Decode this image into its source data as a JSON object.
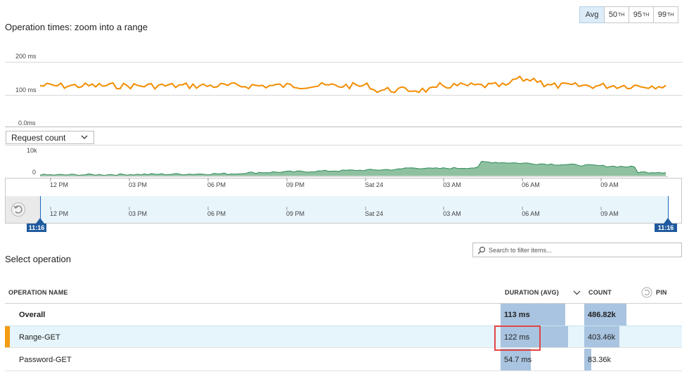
{
  "percentiles": [
    {
      "label": "Avg",
      "sup": "",
      "active": true
    },
    {
      "label": "50",
      "sup": "TH",
      "active": false
    },
    {
      "label": "95",
      "sup": "TH",
      "active": false
    },
    {
      "label": "99",
      "sup": "TH",
      "active": false
    }
  ],
  "chart_title": "Operation times: zoom into a range",
  "duration_chart": {
    "y_labels": [
      "200 ms",
      "100 ms",
      "0.0ms"
    ],
    "series_color": "#f28c00"
  },
  "metric_dropdown": {
    "label": "Request count"
  },
  "count_chart": {
    "y_labels": [
      "10k",
      "0"
    ],
    "fill_color": "#8fc1a1",
    "stroke_color": "#2e8b57"
  },
  "time_ticks": [
    "12 PM",
    "03 PM",
    "06 PM",
    "09 PM",
    "Sat 24",
    "03 AM",
    "06 AM",
    "09 AM"
  ],
  "range": {
    "start_label": "11:16",
    "end_label": "11:16"
  },
  "search": {
    "placeholder": "Search to filter items..."
  },
  "select_title": "Select operation",
  "table": {
    "headers": {
      "name": "OPERATION NAME",
      "duration": "DURATION (AVG)",
      "count": "COUNT",
      "pin": "PIN"
    },
    "rows": [
      {
        "name": "Overall",
        "duration": "113 ms",
        "count": "486.82k",
        "dur_frac": 0.96,
        "cnt_frac": 1.0
      },
      {
        "name": "Range-GET",
        "duration": "122 ms",
        "count": "403.46k",
        "dur_frac": 1.0,
        "cnt_frac": 0.83
      },
      {
        "name": "Password-GET",
        "duration": "54.7 ms",
        "count": "83.36k",
        "dur_frac": 0.45,
        "cnt_frac": 0.17
      }
    ]
  },
  "accent_color": "#f39c12"
}
